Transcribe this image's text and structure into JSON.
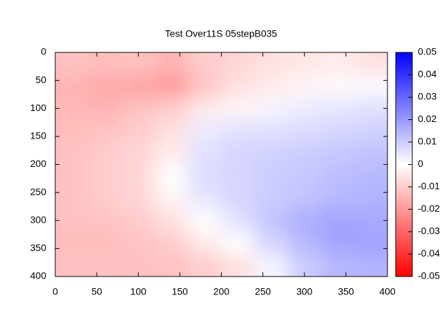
{
  "chart_data": {
    "type": "heatmap",
    "title": "Test Over11S 05stepB035",
    "x": [
      20,
      60,
      100,
      140,
      180,
      220,
      260,
      300,
      340,
      380
    ],
    "y": [
      20,
      60,
      100,
      140,
      180,
      220,
      260,
      300,
      340,
      380
    ],
    "values": [
      [
        -0.012,
        -0.013,
        -0.012,
        -0.015,
        -0.01,
        -0.008,
        -0.006,
        -0.005,
        -0.004,
        -0.006
      ],
      [
        -0.015,
        -0.017,
        -0.018,
        -0.02,
        -0.012,
        -0.006,
        -0.004,
        -0.002,
        -0.001,
        0.001
      ],
      [
        -0.014,
        -0.015,
        -0.012,
        -0.01,
        -0.004,
        -0.002,
        0.002,
        0.004,
        0.005,
        0.006
      ],
      [
        -0.013,
        -0.012,
        -0.01,
        -0.006,
        0.004,
        0.006,
        0.006,
        0.007,
        0.008,
        0.009
      ],
      [
        -0.012,
        -0.01,
        -0.008,
        -0.004,
        0.006,
        0.008,
        0.009,
        0.01,
        0.011,
        0.012
      ],
      [
        -0.012,
        -0.01,
        -0.008,
        0.0,
        0.007,
        0.008,
        0.01,
        0.011,
        0.013,
        0.014
      ],
      [
        -0.012,
        -0.01,
        -0.008,
        -0.002,
        0.005,
        0.008,
        0.01,
        0.012,
        0.014,
        0.015
      ],
      [
        -0.012,
        -0.012,
        -0.01,
        -0.006,
        0.0,
        0.006,
        0.012,
        0.016,
        0.018,
        0.017
      ],
      [
        -0.013,
        -0.013,
        -0.012,
        -0.01,
        -0.004,
        0.0,
        0.008,
        0.014,
        0.018,
        0.018
      ],
      [
        -0.012,
        -0.012,
        -0.012,
        -0.012,
        -0.01,
        -0.006,
        0.002,
        0.01,
        0.014,
        0.015
      ]
    ],
    "xlim": [
      0,
      400
    ],
    "xticks": [
      0,
      50,
      100,
      150,
      200,
      250,
      300,
      350,
      400
    ],
    "ylim": [
      0,
      400
    ],
    "yticks": [
      0,
      50,
      100,
      150,
      200,
      250,
      300,
      350,
      400
    ],
    "y_reversed": true,
    "cblim": [
      -0.05,
      0.05
    ],
    "cbticks": [
      0.05,
      0.04,
      0.03,
      0.02,
      0.01,
      0,
      -0.01,
      -0.02,
      -0.03,
      -0.04,
      -0.05
    ],
    "colors": [
      "#ff0000",
      "#ffffff",
      "#0000ff"
    ]
  }
}
